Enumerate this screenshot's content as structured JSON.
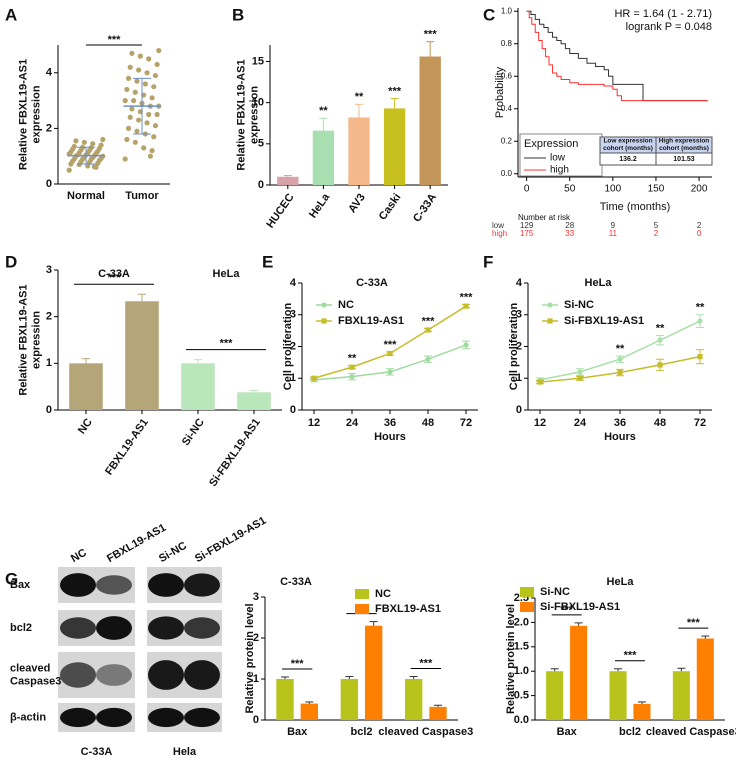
{
  "chart_data": [
    {
      "panel": "A",
      "type": "scatter",
      "y_label": [
        "Relative FBXL19-AS1",
        "expression"
      ],
      "series": [
        {
          "name": "Normal",
          "color": "#b5a36a",
          "values": [
            0.5,
            0.6,
            0.65,
            0.7,
            0.72,
            0.75,
            0.78,
            0.8,
            0.82,
            0.85,
            0.88,
            0.9,
            0.9,
            0.92,
            0.95,
            0.97,
            1.0,
            1.0,
            1.02,
            1.05,
            1.05,
            1.08,
            1.1,
            1.1,
            1.12,
            1.15,
            1.18,
            1.2,
            1.22,
            1.25,
            1.28,
            1.3,
            1.32,
            1.35,
            1.4,
            1.45,
            1.5,
            1.55,
            1.6,
            0.62
          ]
        },
        {
          "name": "Tumor",
          "color": "#b5a36a",
          "values": [
            0.9,
            1.2,
            1.3,
            1.5,
            1.6,
            1.7,
            1.8,
            1.9,
            2.0,
            2.1,
            2.2,
            2.3,
            2.4,
            2.5,
            2.5,
            2.6,
            2.7,
            2.8,
            2.8,
            2.9,
            3.0,
            3.0,
            3.1,
            3.2,
            3.3,
            3.4,
            3.5,
            3.6,
            3.7,
            3.8,
            3.9,
            4.0,
            4.1,
            4.2,
            4.3,
            4.5,
            4.6,
            4.7,
            4.8,
            1.0
          ]
        }
      ],
      "means": [
        1.02,
        2.8
      ],
      "sd": [
        0.3,
        1.0
      ],
      "mean_color": "#6f8fc7",
      "significance": "***",
      "ylim": [
        0,
        5
      ],
      "yticks": [
        0,
        2,
        4
      ]
    },
    {
      "panel": "B",
      "type": "bar",
      "y_label": [
        "Relative FBXL19-AS1",
        "expression"
      ],
      "categories": [
        "HUCEC",
        "HeLa",
        "AV3",
        "Caski",
        "C-33A"
      ],
      "values": [
        1,
        6.6,
        8.2,
        9.3,
        15.6
      ],
      "errors": [
        0.15,
        1.5,
        1.6,
        1.2,
        1.8
      ],
      "colors": [
        "#d8a3a8",
        "#a9dfb0",
        "#f3b98a",
        "#c7c01f",
        "#c29558"
      ],
      "significance": [
        null,
        "**",
        "**",
        "***",
        "***"
      ],
      "ylim": [
        0,
        17
      ],
      "yticks": [
        0,
        5,
        10,
        15
      ]
    },
    {
      "panel": "C",
      "type": "step",
      "y_label": "Probability",
      "x_label": "Time (months)",
      "annotations": [
        "HR = 1.64 (1 - 2.71)",
        "logrank P = 0.048"
      ],
      "legend_title": "Expression",
      "series": [
        {
          "name": "low",
          "color": "#333333",
          "x": [
            0,
            5,
            10,
            15,
            20,
            25,
            30,
            35,
            40,
            45,
            50,
            60,
            70,
            80,
            90,
            95,
            100,
            110,
            120,
            135,
            210
          ],
          "values": [
            1,
            0.98,
            0.95,
            0.92,
            0.9,
            0.87,
            0.84,
            0.82,
            0.8,
            0.77,
            0.74,
            0.71,
            0.68,
            0.66,
            0.64,
            0.6,
            0.55,
            0.55,
            0.55,
            0.45,
            0.45
          ]
        },
        {
          "name": "high",
          "color": "#ff3030",
          "x": [
            0,
            3,
            6,
            10,
            14,
            18,
            22,
            26,
            30,
            35,
            40,
            50,
            60,
            70,
            90,
            100,
            105,
            110,
            210
          ],
          "values": [
            1,
            0.96,
            0.92,
            0.87,
            0.82,
            0.77,
            0.72,
            0.67,
            0.62,
            0.6,
            0.58,
            0.56,
            0.55,
            0.55,
            0.54,
            0.52,
            0.48,
            0.45,
            0.45
          ]
        }
      ],
      "xlim": [
        -10,
        215
      ],
      "xticks": [
        0,
        50,
        100,
        150,
        200
      ],
      "ylim": [
        -0.02,
        1.02
      ],
      "yticks": [
        {
          "value": 0,
          "label": "0.0"
        },
        0.2,
        0.4,
        0.6,
        0.8,
        {
          "value": 1,
          "label": "1.0"
        }
      ],
      "table": {
        "header": [
          [
            "Low expression",
            "cohort (months)"
          ],
          [
            "High expression",
            "cohort (months)"
          ]
        ],
        "row": [
          136.2,
          101.53
        ]
      },
      "risk_table": {
        "title": "Number at risk",
        "rows": [
          {
            "name": "low",
            "values": [
              129,
              28,
              9,
              5,
              2
            ]
          },
          {
            "name": "high",
            "values": [
              175,
              33,
              11,
              2,
              0
            ]
          }
        ]
      }
    },
    {
      "panel": "D",
      "type": "bar",
      "y_label": [
        "Relative FBXL19-AS1",
        "expression"
      ],
      "categories": [
        "NC",
        "FBXL19-AS1",
        "Si-NC",
        "Si-FBXL19-AS1"
      ],
      "values": [
        1,
        2.33,
        1,
        0.38
      ],
      "errors": [
        0.1,
        0.15,
        0.08,
        0.04
      ],
      "colors": [
        "#b5a679",
        "#b5a679",
        "#b9e6bb",
        "#b9e6bb"
      ],
      "groups": [
        "C-33A",
        "HeLa"
      ],
      "significance": [
        "***",
        "***"
      ],
      "ylim": [
        0,
        3
      ],
      "yticks": [
        0,
        1,
        2,
        3
      ]
    },
    {
      "panel": "E",
      "type": "line",
      "title": "C-33A",
      "x_label": "Hours",
      "y_label": "Cell proliferation",
      "categories": [
        "12",
        "24",
        "36",
        "48",
        "72"
      ],
      "series": [
        {
          "name": "NC",
          "color": "#9fdb9f",
          "values": [
            0.95,
            1.05,
            1.2,
            1.6,
            2.05
          ],
          "errors": [
            0.06,
            0.1,
            0.1,
            0.1,
            0.12
          ]
        },
        {
          "name": "FBXL19-AS1",
          "color": "#c6bd2a",
          "values": [
            1.0,
            1.35,
            1.78,
            2.52,
            3.27
          ],
          "errors": [
            0.04,
            0.05,
            0.05,
            0.05,
            0.05
          ]
        }
      ],
      "significance": [
        null,
        "**",
        "***",
        "***",
        "***"
      ],
      "ylim": [
        0,
        4
      ],
      "yticks": [
        0,
        1,
        2,
        3,
        4
      ]
    },
    {
      "panel": "F",
      "type": "line",
      "title": "HeLa",
      "x_label": "Hours",
      "y_label": "Cell proliferation",
      "categories": [
        "12",
        "24",
        "36",
        "48",
        "72"
      ],
      "series": [
        {
          "name": "Si-NC",
          "color": "#a8e0a8",
          "values": [
            0.95,
            1.2,
            1.6,
            2.2,
            2.8
          ],
          "errors": [
            0.06,
            0.1,
            0.1,
            0.15,
            0.2
          ]
        },
        {
          "name": "Si-FBXL19-AS1",
          "color": "#c6bd2a",
          "values": [
            0.88,
            1.0,
            1.18,
            1.42,
            1.68
          ],
          "errors": [
            0.05,
            0.06,
            0.1,
            0.18,
            0.22
          ]
        }
      ],
      "significance": [
        null,
        null,
        "**",
        "**",
        "**"
      ],
      "ylim": [
        0,
        4
      ],
      "yticks": [
        0,
        1,
        2,
        3,
        4
      ]
    },
    {
      "type": "bar",
      "title": "C-33A",
      "y_label": "Relative protein level",
      "categories": [
        "Bax",
        "bcl2",
        "cleaved Caspase3"
      ],
      "series": [
        {
          "name": "NC",
          "color": "#b8c41c",
          "values": [
            1,
            1,
            1
          ],
          "errors": [
            0.05,
            0.06,
            0.06
          ]
        },
        {
          "name": "FBXL19-AS1",
          "color": "#ff8000",
          "values": [
            0.4,
            2.3,
            0.32
          ],
          "errors": [
            0.04,
            0.1,
            0.04
          ]
        }
      ],
      "significance": [
        "***",
        "***",
        "***"
      ],
      "ylim": [
        0,
        3
      ],
      "yticks": [
        0,
        1,
        2,
        3
      ]
    },
    {
      "type": "bar",
      "title": "HeLa",
      "y_label": "Relative protein level",
      "categories": [
        "Bax",
        "bcl2",
        "cleaved Caspase3"
      ],
      "series": [
        {
          "name": "Si-NC",
          "color": "#b8c41c",
          "values": [
            1,
            1,
            1
          ],
          "errors": [
            0.05,
            0.05,
            0.06
          ]
        },
        {
          "name": "Si-FBXL19-AS1",
          "color": "#ff8000",
          "values": [
            1.93,
            0.33,
            1.67
          ],
          "errors": [
            0.06,
            0.04,
            0.05
          ]
        }
      ],
      "significance": [
        "***",
        "***",
        "***"
      ],
      "ylim": [
        0,
        2.5
      ],
      "yticks": [
        {
          "value": 0,
          "label": "0.0"
        },
        0.5,
        {
          "value": 1,
          "label": "1.0"
        },
        1.5,
        {
          "value": 2,
          "label": "2.0"
        },
        2.5
      ]
    }
  ],
  "blot": {
    "panel": "G",
    "lanes": [
      "NC",
      "FBXL19-AS1",
      "Si-NC",
      "Si-FBXL19-AS1"
    ],
    "proteins": [
      [
        "Bax"
      ],
      [
        "bcl2"
      ],
      [
        "cleaved",
        "Caspase3"
      ],
      [
        "β-actin"
      ]
    ],
    "cell_lines": [
      "C-33A",
      "Hela"
    ]
  }
}
